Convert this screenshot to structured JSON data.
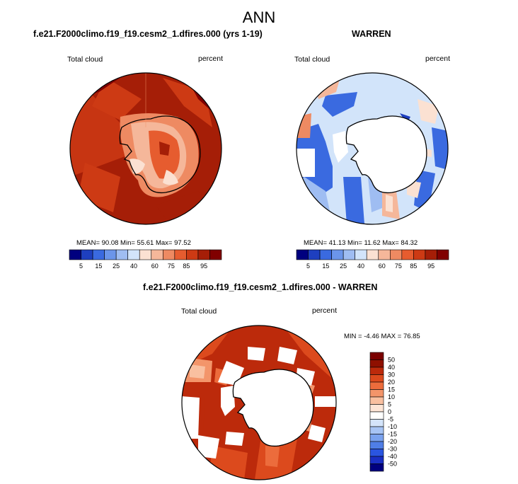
{
  "main_title": "ANN",
  "panels": [
    {
      "title": "f.e21.F2000climo.f19_f19.cesm2_1.dfires.000 (yrs 1-19)",
      "variable": "Total cloud",
      "units": "percent",
      "stats": "MEAN=  90.08  Min=  55.61  Max=  97.52"
    },
    {
      "title": "WARREN",
      "variable": "Total cloud",
      "units": "percent",
      "stats": "MEAN=  41.13  Min=  11.62  Max=  84.32"
    },
    {
      "title": "f.e21.F2000climo.f19_f19.cesm2_1.dfires.000 - WARREN",
      "variable": "Total cloud",
      "units": "percent",
      "stats": "MIN =  -4.46 MAX =  76.85"
    }
  ],
  "colorbar_ticks": [
    "5",
    "15",
    "25",
    "40",
    "60",
    "75",
    "85",
    "95"
  ],
  "diff_colorbar_ticks": [
    "50",
    "40",
    "30",
    "20",
    "15",
    "10",
    "5",
    "0",
    "-5",
    "-10",
    "-15",
    "-20",
    "-30",
    "-40",
    "-50"
  ],
  "colors": {
    "abs_scale": [
      "#00007f",
      "#1e3fbf",
      "#3a6ae0",
      "#6b95ea",
      "#9fbdf2",
      "#d2e4fa",
      "#fbe1d2",
      "#f5b79a",
      "#ee8a62",
      "#e65c2f",
      "#cd3a14",
      "#a51e07",
      "#800000"
    ],
    "diff_scale": [
      "#00007f",
      "#1a2fc4",
      "#2a55e0",
      "#4f7ee6",
      "#7aa2ee",
      "#a7c4f4",
      "#d4e4fa",
      "#ffffff",
      "#fde5d6",
      "#f9c0a0",
      "#f3956a",
      "#ec6c3c",
      "#dc4a1d",
      "#bc2a0b",
      "#8f1000",
      "#7a0000"
    ]
  }
}
